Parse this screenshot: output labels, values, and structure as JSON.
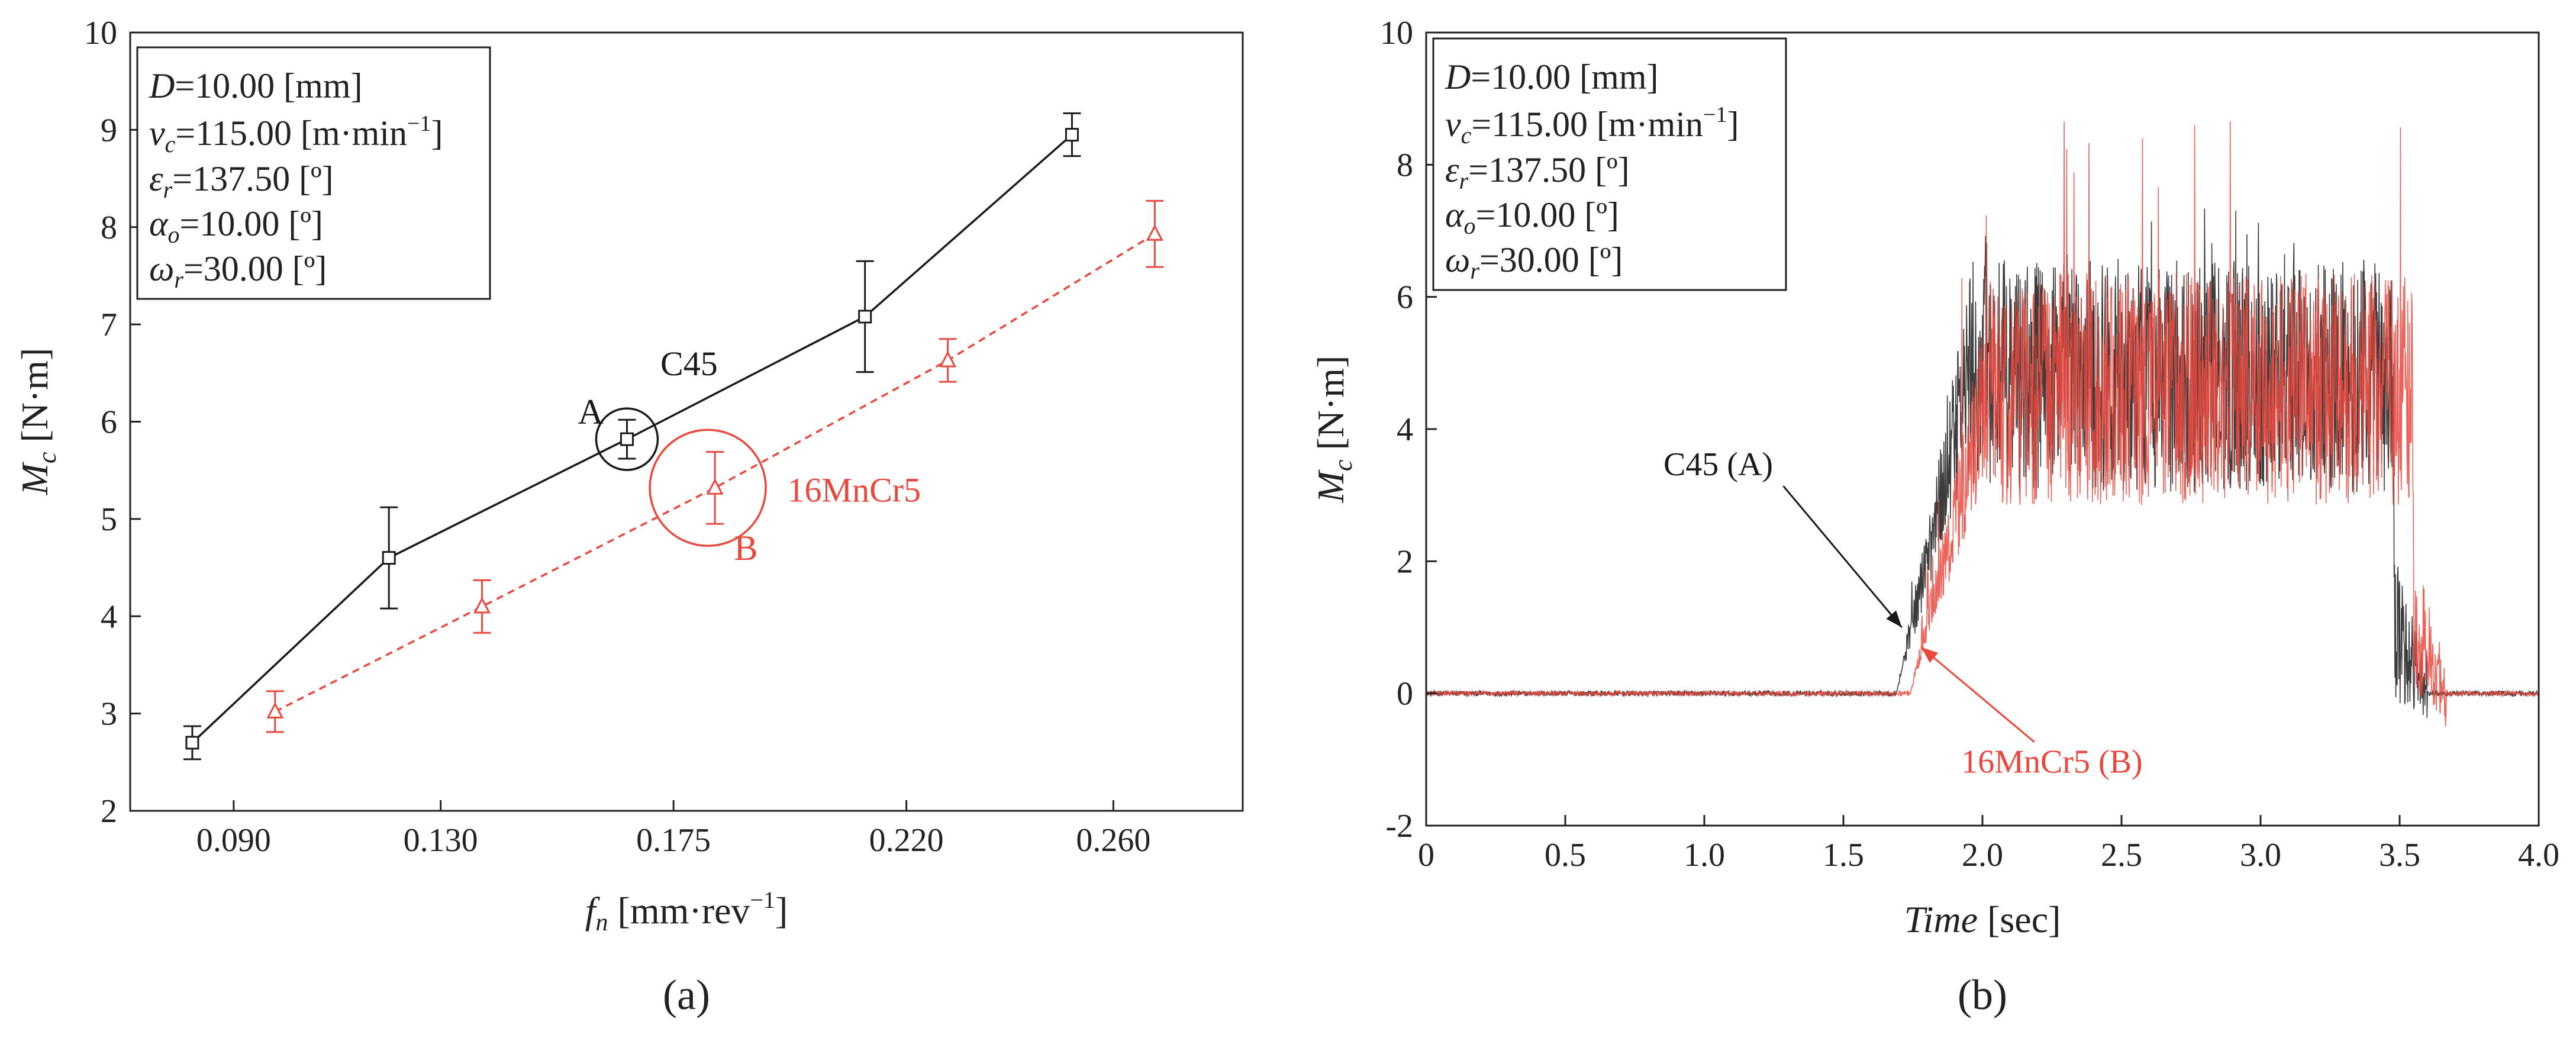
{
  "colors": {
    "c45": "#1a1a1a",
    "mncr": "#e8483d"
  },
  "panel_labels": [
    "(a)",
    "(b)"
  ],
  "chart_data": [
    {
      "type": "line",
      "panel": "(a)",
      "xlabel_main": "f",
      "xlabel_sub": "n",
      "xlabel_unit": " [mm·rev",
      "xlabel_exp": "−1",
      "xlabel_close": "]",
      "ylabel_main": "M",
      "ylabel_sub": "c",
      "ylabel_unit": " [N·m]",
      "xlim": [
        0.07,
        0.285
      ],
      "ylim": [
        2,
        10
      ],
      "xticks": [
        "0.090",
        "0.130",
        "0.175",
        "0.220",
        "0.260"
      ],
      "xtick_values": [
        0.09,
        0.13,
        0.175,
        0.22,
        0.26
      ],
      "yticks": [
        2,
        3,
        4,
        5,
        6,
        7,
        8,
        9,
        10
      ],
      "grid": false,
      "info_box": [
        {
          "sym": "D",
          "sub": "",
          "text": "=10.00 [mm]"
        },
        {
          "sym": "v",
          "sub": "c",
          "text": "=115.00 [m·min",
          "sup": "−1",
          "tail": "]"
        },
        {
          "sym": "ε",
          "sub": "r",
          "text": "=137.50 [º]"
        },
        {
          "sym": "α",
          "sub": "o",
          "text": "=10.00 [º]"
        },
        {
          "sym": "ω",
          "sub": "r",
          "text": "=30.00 [º]"
        }
      ],
      "series": [
        {
          "name": "C45",
          "marker": "square",
          "line": "solid",
          "x": [
            0.082,
            0.12,
            0.166,
            0.212,
            0.252
          ],
          "y": [
            2.7,
            4.6,
            5.82,
            7.08,
            8.95
          ],
          "err": [
            0.17,
            0.52,
            0.2,
            0.57,
            0.22
          ]
        },
        {
          "name": "16MnCr5",
          "marker": "triangle",
          "line": "dashed",
          "x": [
            0.098,
            0.138,
            0.183,
            0.228,
            0.268
          ],
          "y": [
            3.02,
            4.1,
            5.32,
            6.63,
            7.93
          ],
          "err": [
            0.21,
            0.27,
            0.37,
            0.22,
            0.34
          ]
        }
      ],
      "annotations": [
        {
          "text": "A",
          "x": 0.159,
          "y": 6.1
        },
        {
          "text": "C45",
          "x": 0.178,
          "y": 6.6
        },
        {
          "text": "16MnCr5",
          "x": 0.197,
          "y": 5.3
        },
        {
          "text": "B",
          "x": 0.189,
          "y": 4.7
        }
      ]
    },
    {
      "type": "line",
      "panel": "(b)",
      "xlabel_main": "Time",
      "xlabel_unit": " [sec]",
      "ylabel_main": "M",
      "ylabel_sub": "c",
      "ylabel_unit": " [N·m]",
      "xlim": [
        0,
        4.0
      ],
      "ylim": [
        -2,
        10
      ],
      "xticks": [
        "0",
        "0.5",
        "1.0",
        "1.5",
        "2.0",
        "2.5",
        "3.0",
        "3.5",
        "4.0"
      ],
      "xtick_values": [
        0,
        0.5,
        1.0,
        1.5,
        2.0,
        2.5,
        3.0,
        3.5,
        4.0
      ],
      "yticks": [
        -2,
        0,
        2,
        4,
        6,
        8,
        10
      ],
      "grid": false,
      "info_box": [
        {
          "sym": "D",
          "sub": "",
          "text": "=10.00 [mm]"
        },
        {
          "sym": "v",
          "sub": "c",
          "text": "=115.00 [m·min",
          "sup": "−1",
          "tail": "]"
        },
        {
          "sym": "ε",
          "sub": "r",
          "text": "=137.50 [º]"
        },
        {
          "sym": "α",
          "sub": "o",
          "text": "=10.00 [º]"
        },
        {
          "sym": "ω",
          "sub": "r",
          "text": "=30.00 [º]"
        }
      ],
      "series": [
        {
          "name": "C45 (A)",
          "line": "dotted",
          "signal": {
            "start": 1.69,
            "rise_end": 1.95,
            "plateau_end": 3.48,
            "fall_end": 3.6,
            "end": 4.0,
            "mean": 4.8,
            "spread": 1.3,
            "peak": 7.4,
            "min": -1.5
          }
        },
        {
          "name": "16MnCr5 (B)",
          "line": "dotted",
          "signal": {
            "start": 1.74,
            "rise_end": 2.02,
            "plateau_end": 3.55,
            "fall_end": 3.67,
            "end": 4.0,
            "mean": 4.6,
            "spread": 1.3,
            "peak": 9.0,
            "min": -1.1
          }
        }
      ],
      "annotations": [
        {
          "text": "C45 (A)",
          "x": 1.05,
          "y": 3.3,
          "arrow_to": [
            1.71,
            1.0
          ]
        },
        {
          "text": "16MnCr5 (B)",
          "x": 2.25,
          "y": -1.2,
          "arrow_to": [
            1.78,
            0.7
          ]
        }
      ]
    }
  ]
}
